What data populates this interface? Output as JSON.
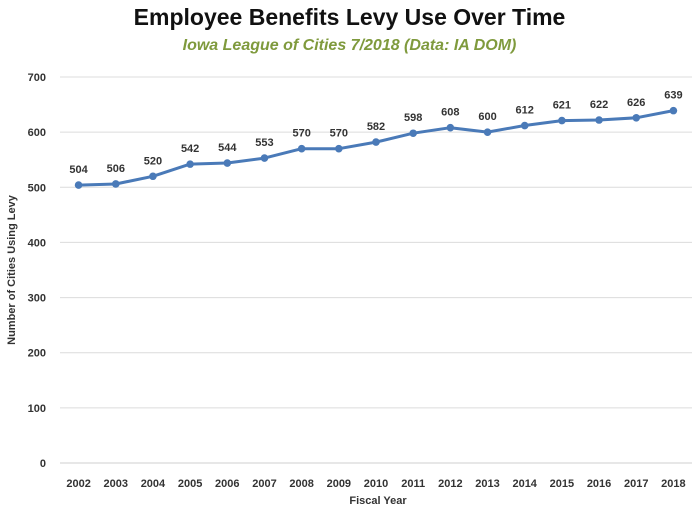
{
  "chart_data": {
    "type": "line",
    "title": "Employee Benefits Levy Use Over Time",
    "subtitle": "Iowa League of Cities 7/2018 (Data: IA DOM)",
    "xlabel": "Fiscal Year",
    "ylabel": "Number of Cities Using Levy",
    "categories": [
      "2002",
      "2003",
      "2004",
      "2005",
      "2006",
      "2007",
      "2008",
      "2009",
      "2010",
      "2011",
      "2012",
      "2013",
      "2014",
      "2015",
      "2016",
      "2017",
      "2018"
    ],
    "values": [
      504,
      506,
      520,
      542,
      544,
      553,
      570,
      570,
      582,
      598,
      608,
      600,
      612,
      621,
      622,
      626,
      639
    ],
    "ylim": [
      0,
      700
    ],
    "yticks": [
      0,
      100,
      200,
      300,
      400,
      500,
      600,
      700
    ],
    "grid": true,
    "data_labels": true,
    "line_color": "#4a7ab8"
  }
}
